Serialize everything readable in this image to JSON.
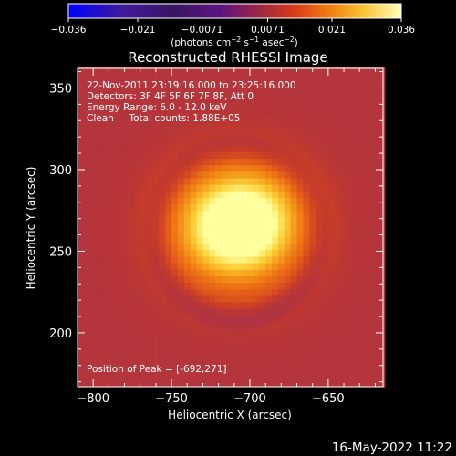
{
  "chart_data": {
    "type": "heatmap",
    "title": "Reconstructed RHESSI Image",
    "xlabel": "Heliocentric X (arcsec)",
    "ylabel": "Heliocentric Y (arcsec)",
    "xlim": [
      -810,
      -615
    ],
    "ylim": [
      167,
      362
    ],
    "x_ticks": [
      -800,
      -750,
      -700,
      -650
    ],
    "x_tick_labels": [
      "−800",
      "−750",
      "−700",
      "−650"
    ],
    "y_ticks": [
      200,
      250,
      300,
      350
    ],
    "y_tick_labels": [
      "200",
      "250",
      "300",
      "350"
    ],
    "colorbar": {
      "range": [
        -0.036,
        0.036
      ],
      "ticks": [
        -0.036,
        -0.021,
        -0.0071,
        0.0071,
        0.021,
        0.036
      ],
      "tick_labels": [
        "−0.036",
        "−0.021",
        "−0.0071",
        "0.0071",
        "0.021",
        "0.036"
      ],
      "unit_label_parts": [
        "(photons cm",
        "−2",
        " s",
        "−1",
        " asec",
        "−2",
        ")"
      ],
      "colormap": [
        "#0000ff",
        "#3f1a8c",
        "#401470",
        "#5a1490",
        "#7a2080",
        "#a02d50",
        "#c83c28",
        "#e0581a",
        "#f07a12",
        "#f7a820",
        "#fcd840",
        "#ffffa0"
      ]
    },
    "annotations": [
      "22-Nov-2011 23:19:16.000 to 23:25:16.000",
      "Detectors: 3F 4F 5F 6F 7F 8F, Att 0",
      "Energy Range: 6.0 - 12.0 keV",
      "Clean     Total counts: 1.88E+05"
    ],
    "peak_label": "Position of Peak = [-692,271]",
    "sources": [
      {
        "x": -708,
        "y": 262,
        "peak": 0.034,
        "sigma_x": 27,
        "sigma_y": 24
      },
      {
        "x": -718,
        "y": 272,
        "peak": 0.012,
        "sigma_x": 22,
        "sigma_y": 22
      },
      {
        "x": -690,
        "y": 275,
        "peak": 0.011,
        "sigma_x": 20,
        "sigma_y": 20
      }
    ],
    "background": 0.0,
    "pixel_size_arcsec": 4
  },
  "footer": {
    "date": "16-May-2022 11:22"
  }
}
